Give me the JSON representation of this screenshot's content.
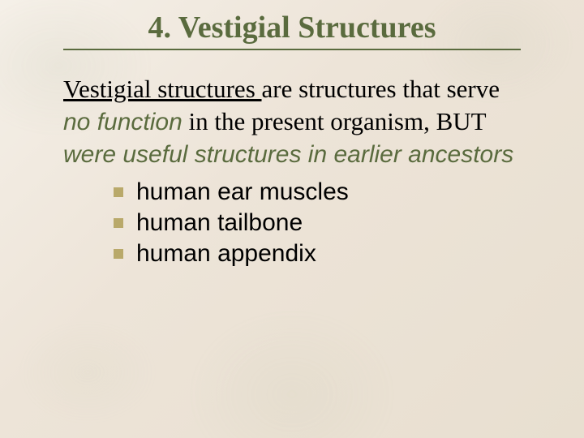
{
  "slide": {
    "title": "4. Vestigial Structures",
    "title_color": "#5a6b3e",
    "title_fontsize": 38,
    "rule_color": "#5a6b3e",
    "background_gradient": [
      "#f5f0e8",
      "#ede4d8",
      "#e8dfd0"
    ],
    "definition": {
      "term": "Vestigial structures ",
      "text1": "are structures that serve ",
      "em1": "no function",
      "text2": " in the present organism, BUT ",
      "em2": "were useful structures in earlier ancestors",
      "body_fontsize": 31,
      "em_color": "#5a6b3e",
      "em_fontsize": 30
    },
    "bullets": {
      "items": [
        {
          "text": "human ear muscles"
        },
        {
          "text": "human tailbone"
        },
        {
          "text": "human appendix"
        }
      ],
      "marker_color": "#b9a96a",
      "marker_size": 12,
      "text_fontsize": 30,
      "text_color": "#000000"
    }
  }
}
